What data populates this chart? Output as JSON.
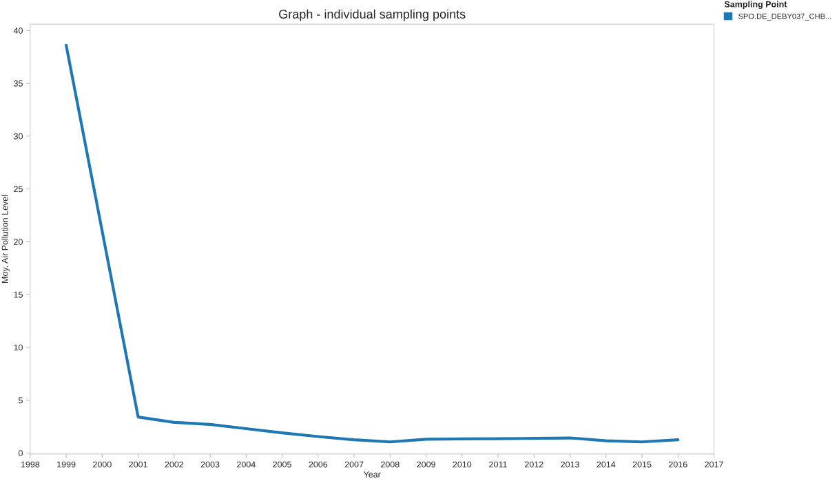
{
  "chart_data": {
    "type": "line",
    "title": "Graph - individual sampling points",
    "xlabel": "Year",
    "ylabel": "Moy. Air Pollution Level",
    "legend_title": "Sampling Point",
    "x": [
      1999,
      2001,
      2002,
      2003,
      2004,
      2005,
      2006,
      2007,
      2008,
      2009,
      2010,
      2011,
      2012,
      2013,
      2014,
      2015,
      2016
    ],
    "series": [
      {
        "name": "SPO.DE_DEBY037_CHB...",
        "color": "#1f77b4",
        "values": [
          38.6,
          3.4,
          2.9,
          2.7,
          2.3,
          1.9,
          1.55,
          1.25,
          1.05,
          1.3,
          1.33,
          1.35,
          1.38,
          1.42,
          1.15,
          1.05,
          1.25
        ]
      }
    ],
    "xlim": [
      1998,
      2017
    ],
    "xticks": [
      1998,
      1999,
      2000,
      2001,
      2002,
      2003,
      2004,
      2005,
      2006,
      2007,
      2008,
      2009,
      2010,
      2011,
      2012,
      2013,
      2014,
      2015,
      2016,
      2017
    ],
    "ylim": [
      -0.1,
      40.6
    ],
    "yticks": [
      0,
      5,
      10,
      15,
      20,
      25,
      30,
      35,
      40
    ],
    "grid": false,
    "legend": "top right",
    "marker": "none",
    "line_style": "solid"
  }
}
